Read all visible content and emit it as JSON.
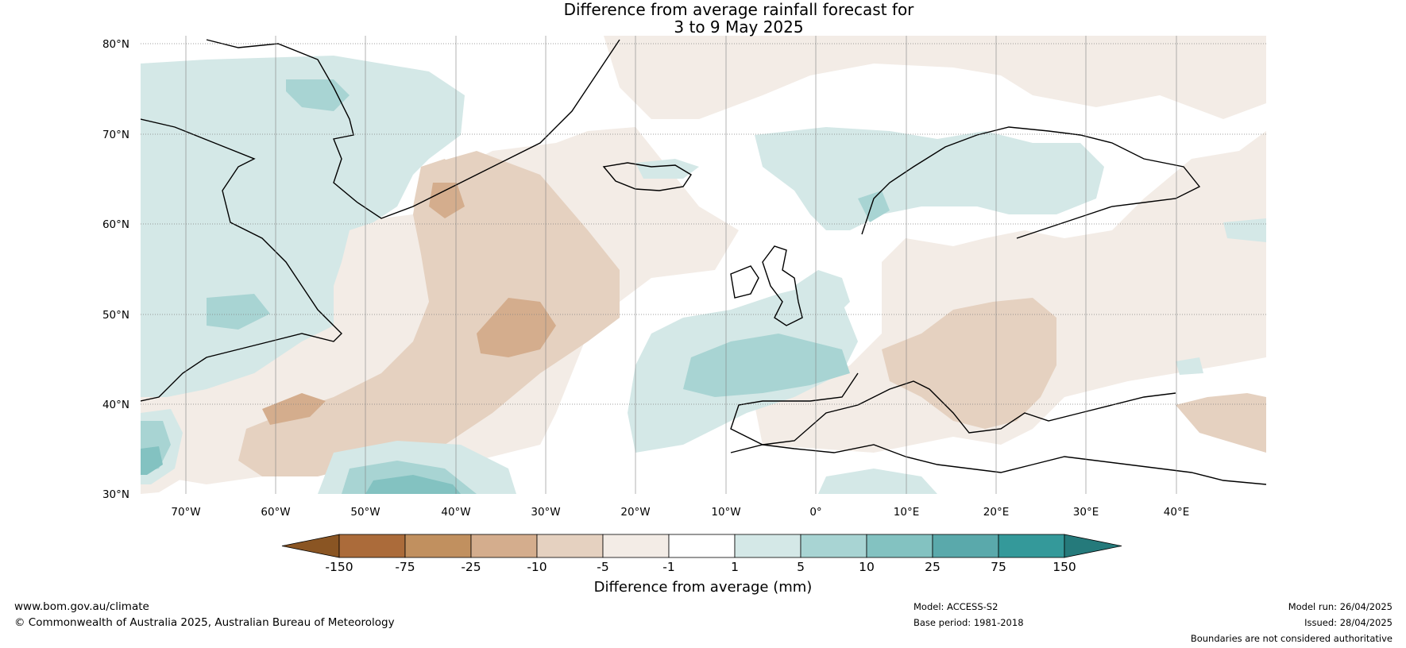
{
  "title": {
    "line1": "Difference from average rainfall forecast for",
    "line2": "3 to 9 May 2025"
  },
  "map": {
    "lat_labels": [
      "80°N",
      "70°N",
      "60°N",
      "50°N",
      "40°N",
      "30°N"
    ],
    "lon_labels": [
      "70°W",
      "60°W",
      "50°W",
      "40°W",
      "30°W",
      "20°W",
      "10°W",
      "0°",
      "10°E",
      "20°E",
      "30°E",
      "40°E"
    ]
  },
  "colorbar": {
    "ticks": [
      "-150",
      "-75",
      "-25",
      "-10",
      "-5",
      "-1",
      "1",
      "5",
      "10",
      "25",
      "75",
      "150"
    ],
    "label": "Difference from average (mm)",
    "colors": [
      "#8a5523",
      "#ab6b3a",
      "#c1905f",
      "#d4ad8d",
      "#e5d1c0",
      "#f3ece6",
      "#ffffff",
      "#d4e8e7",
      "#a8d4d3",
      "#83c2c1",
      "#5aa9ab",
      "#34999a",
      "#257a7b"
    ]
  },
  "footer": {
    "website": "www.bom.gov.au/climate",
    "copyright": "© Commonwealth of Australia 2025, Australian Bureau of Meteorology",
    "model": "Model: ACCESS-S2",
    "base_period": "Base period: 1981-2018",
    "model_run": "Model run: 26/04/2025",
    "issued": "Issued: 28/04/2025",
    "disclaimer": "Boundaries are not considered authoritative"
  }
}
